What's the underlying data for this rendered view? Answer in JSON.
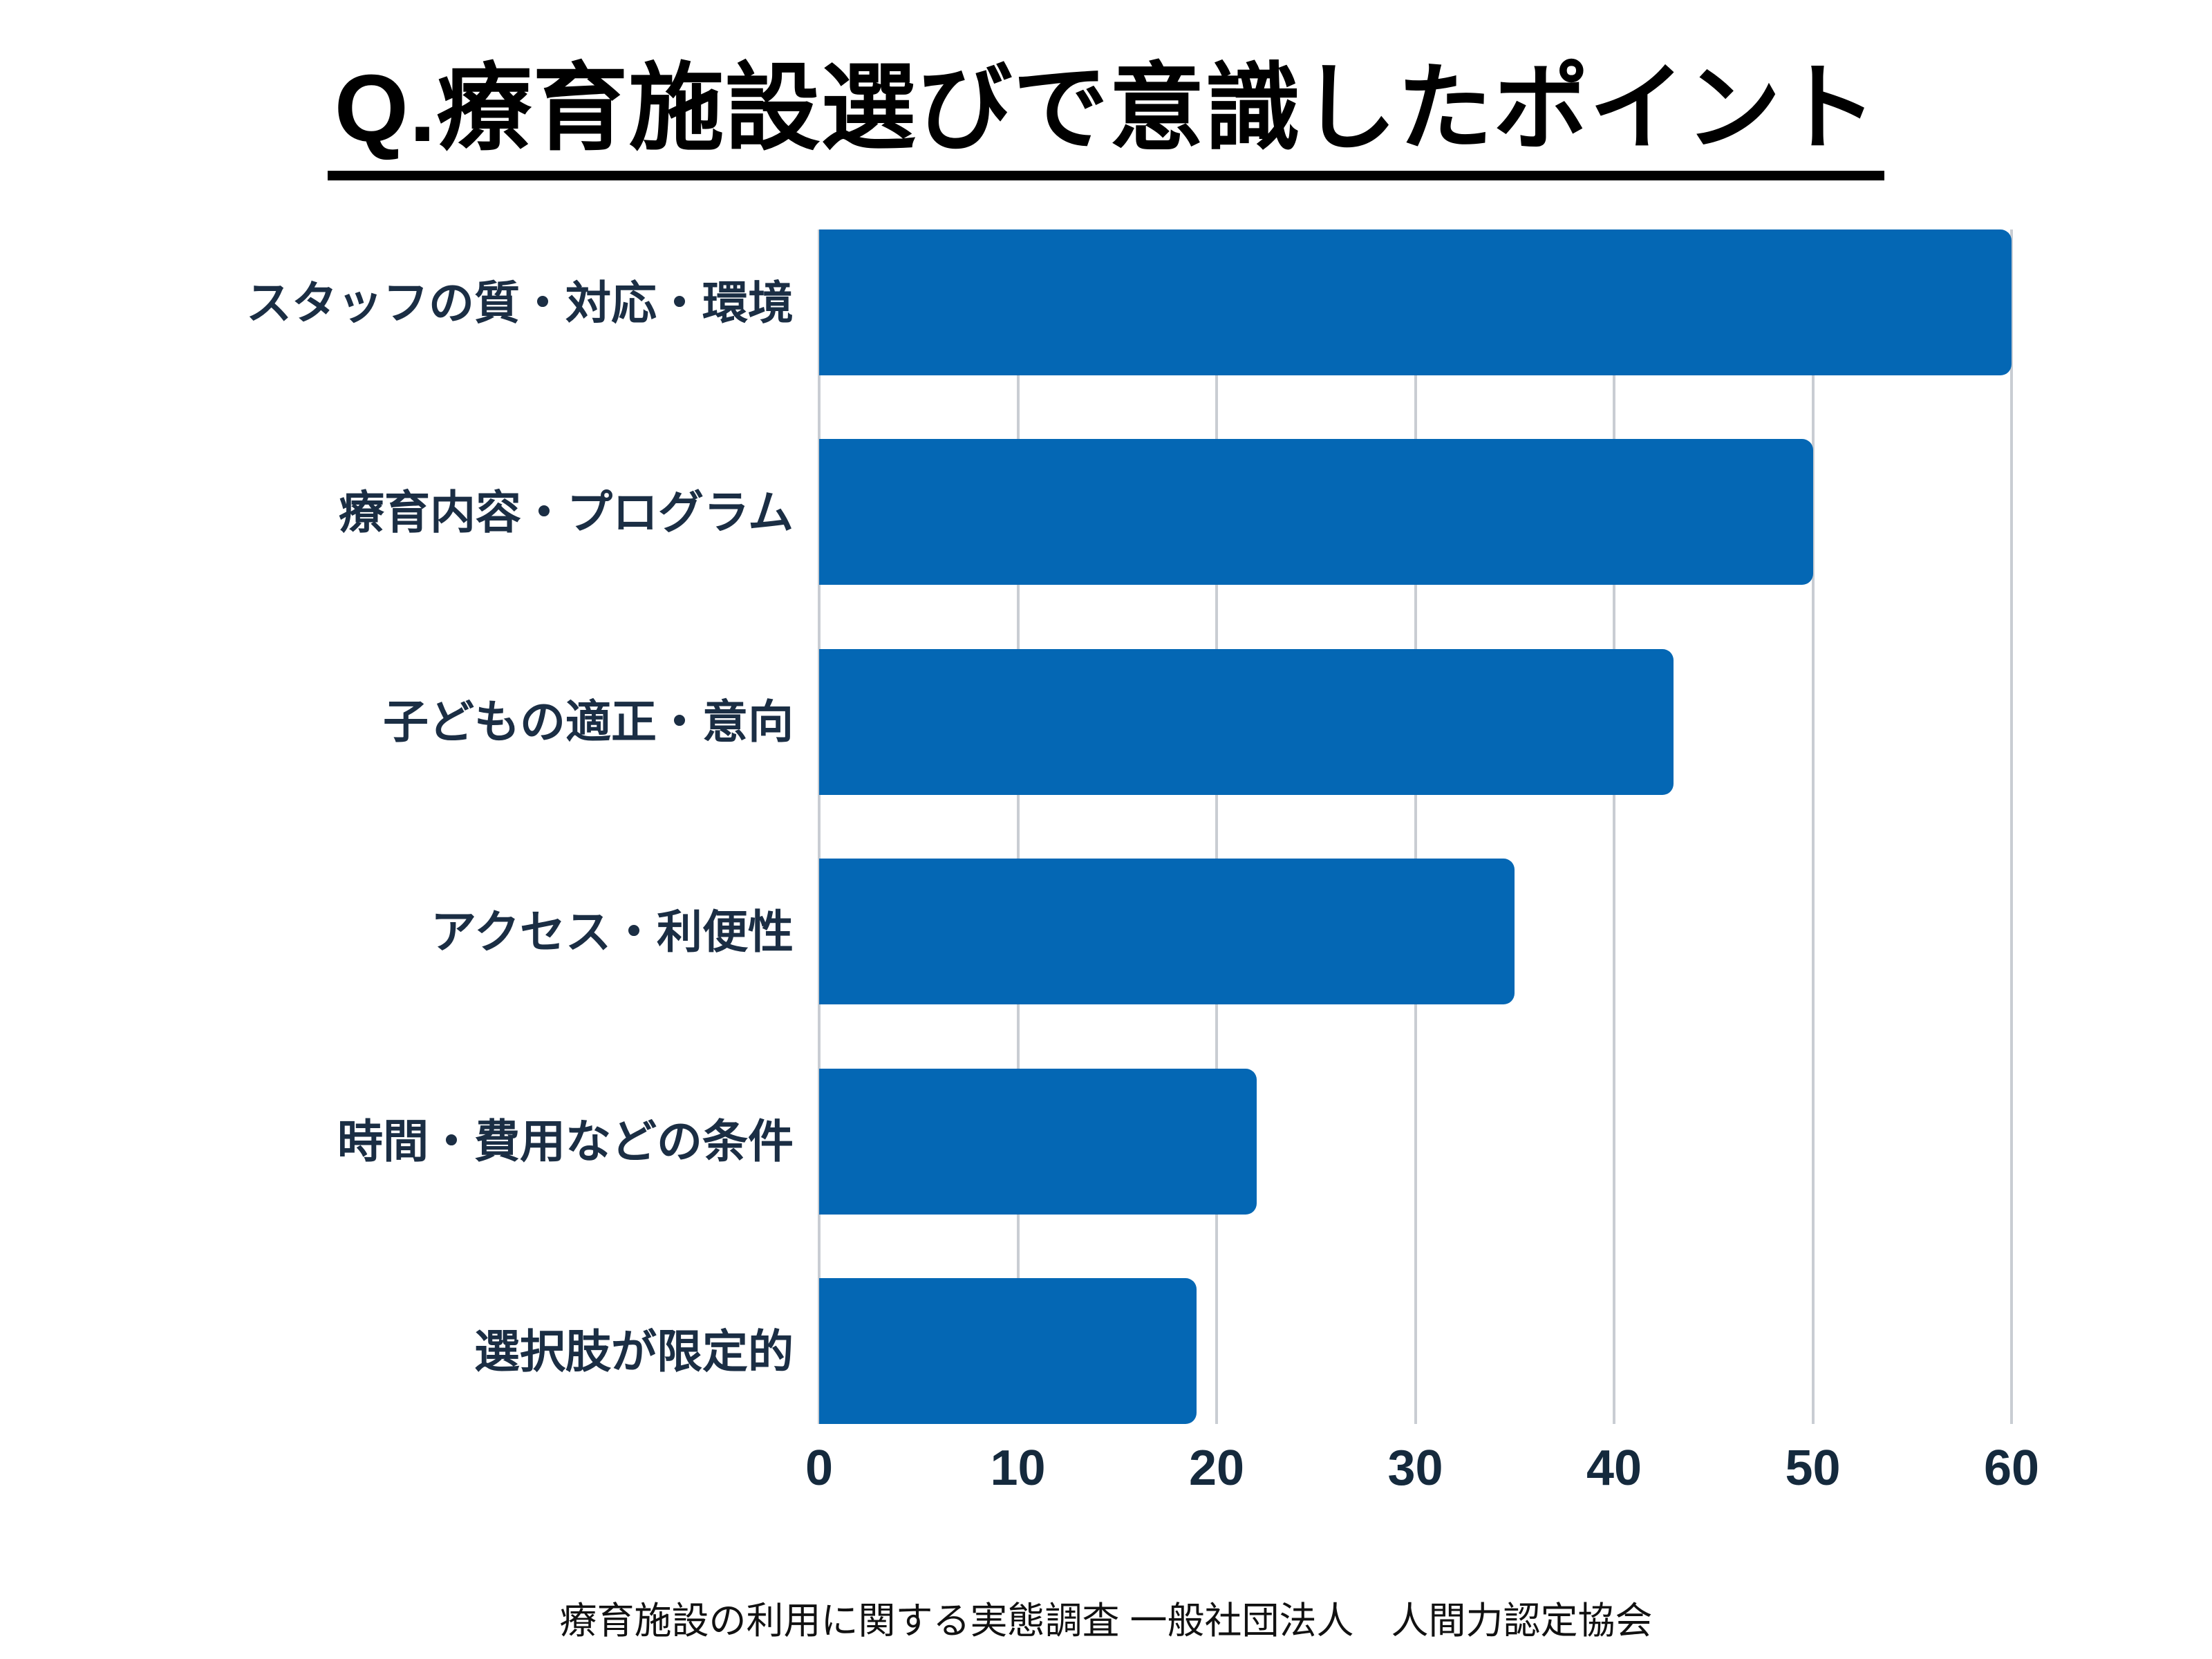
{
  "title": "Q.療育施設選びで意識したポイント",
  "footer": "療育施設の利用に関する実態調査 一般社団法人　人間力認定協会",
  "colors": {
    "bar": "#0467b4",
    "category_label": "#1b2e44",
    "tick_label": "#152a3d",
    "gridline": "#c9cdd3",
    "title_text": "#000000",
    "background": "#ffffff"
  },
  "chart_data": {
    "type": "bar",
    "orientation": "horizontal",
    "title": "Q.療育施設選びで意識したポイント",
    "categories": [
      "スタッフの質・対応・環境",
      "療育内容・プログラム",
      "子どもの適正・意向",
      "アクセス・利便性",
      "時間・費用などの条件",
      "選択肢が限定的"
    ],
    "values": [
      60,
      50,
      43,
      35,
      22,
      19
    ],
    "xlabel": "",
    "ylabel": "",
    "xlim": [
      0,
      60
    ],
    "xticks": [
      0,
      10,
      20,
      30,
      40,
      50,
      60
    ],
    "grid": true,
    "legend": false,
    "source_note": "療育施設の利用に関する実態調査 一般社団法人　人間力認定協会"
  }
}
